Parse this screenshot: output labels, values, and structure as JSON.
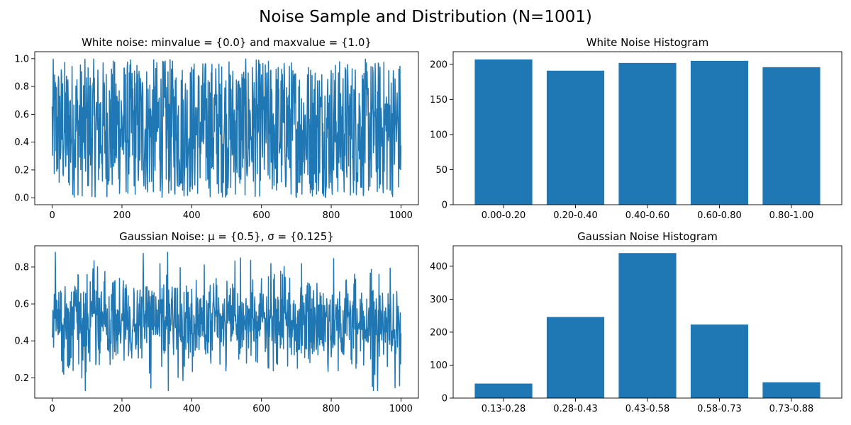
{
  "figure": {
    "title": "Noise Sample and Distribution (N=1001)"
  },
  "colors": {
    "series": "#1f77b4",
    "axes": "#000000",
    "background": "#ffffff"
  },
  "chart_data": [
    {
      "type": "line",
      "title": "White noise: minvalue = {0.0} and maxvalue = {1.0}",
      "xlabel": "",
      "ylabel": "",
      "n_points": 1001,
      "xlim": [
        -50,
        1050
      ],
      "ylim": [
        -0.05,
        1.05
      ],
      "x_ticks": [
        0,
        200,
        400,
        600,
        800,
        1000
      ],
      "y_ticks": [
        0.0,
        0.2,
        0.4,
        0.6,
        0.8,
        1.0
      ],
      "y_tick_labels": [
        "0.0",
        "0.2",
        "0.4",
        "0.6",
        "0.8",
        "1.0"
      ],
      "distribution": "uniform",
      "min": 0.0,
      "max": 1.0,
      "grid": false,
      "legend": "none"
    },
    {
      "type": "bar",
      "title": "White Noise Histogram",
      "xlabel": "",
      "ylabel": "",
      "categories": [
        "0.00-0.20",
        "0.20-0.40",
        "0.40-0.60",
        "0.60-0.80",
        "0.80-1.00"
      ],
      "values": [
        207,
        191,
        202,
        205,
        196
      ],
      "ylim": [
        0,
        218
      ],
      "y_ticks": [
        0,
        50,
        100,
        150,
        200
      ],
      "grid": false,
      "legend": "none"
    },
    {
      "type": "line",
      "title": "Gaussian Noise: μ = {0.5}, σ = {0.125}",
      "xlabel": "",
      "ylabel": "",
      "n_points": 1001,
      "xlim": [
        -50,
        1050
      ],
      "ylim": [
        0.09,
        0.915
      ],
      "x_ticks": [
        0,
        200,
        400,
        600,
        800,
        1000
      ],
      "y_ticks": [
        0.2,
        0.4,
        0.6,
        0.8
      ],
      "y_tick_labels": [
        "0.2",
        "0.4",
        "0.6",
        "0.8"
      ],
      "distribution": "gaussian",
      "mean": 0.5,
      "std": 0.125,
      "min": 0.13,
      "max": 0.88,
      "grid": false,
      "legend": "none"
    },
    {
      "type": "bar",
      "title": "Gaussian Noise Histogram",
      "xlabel": "",
      "ylabel": "",
      "categories": [
        "0.13-0.28",
        "0.28-0.43",
        "0.43-0.58",
        "0.58-0.73",
        "0.73-0.88"
      ],
      "values": [
        44,
        246,
        440,
        223,
        48
      ],
      "ylim": [
        0,
        462
      ],
      "y_ticks": [
        0,
        100,
        200,
        300,
        400
      ],
      "grid": false,
      "legend": "none"
    }
  ]
}
